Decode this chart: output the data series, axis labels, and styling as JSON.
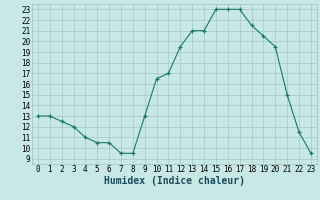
{
  "x": [
    0,
    1,
    2,
    3,
    4,
    5,
    6,
    7,
    8,
    9,
    10,
    11,
    12,
    13,
    14,
    15,
    16,
    17,
    18,
    19,
    20,
    21,
    22,
    23
  ],
  "y": [
    13,
    13,
    12.5,
    12,
    11,
    10.5,
    10.5,
    9.5,
    9.5,
    13,
    16.5,
    17,
    19.5,
    21,
    21,
    23,
    23,
    23,
    21.5,
    20.5,
    19.5,
    15,
    11.5,
    9.5
  ],
  "line_color": "#1a7a5e",
  "marker_color": "#1a7a5e",
  "bg_color": "#c8e8e5",
  "grid_color": "#9bbfbc",
  "xlabel": "Humidex (Indice chaleur)",
  "xlim": [
    -0.5,
    23.5
  ],
  "ylim": [
    8.5,
    23.5
  ],
  "yticks": [
    9,
    10,
    11,
    12,
    13,
    14,
    15,
    16,
    17,
    18,
    19,
    20,
    21,
    22,
    23
  ],
  "xticks": [
    0,
    1,
    2,
    3,
    4,
    5,
    6,
    7,
    8,
    9,
    10,
    11,
    12,
    13,
    14,
    15,
    16,
    17,
    18,
    19,
    20,
    21,
    22,
    23
  ],
  "label_fontsize": 6.5,
  "tick_fontsize": 5.5,
  "xlabel_fontsize": 7
}
